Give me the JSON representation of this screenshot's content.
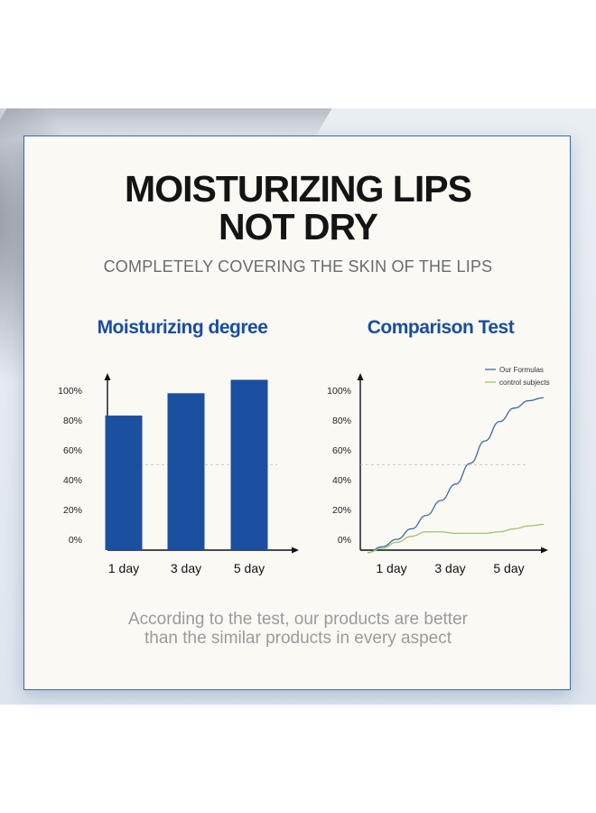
{
  "heading": {
    "line1": "MOISTURIZING LIPS",
    "line2": "NOT DRY",
    "subtitle": "COMPLETELY COVERING THE SKIN OF THE LIPS"
  },
  "footer": {
    "line1": "According to the test, our products are better",
    "line2": "than the similar products in every aspect"
  },
  "colors": {
    "primary_blue": "#1b4fa0",
    "line_blue": "#3d6aa8",
    "line_green": "#9ec36b"
  },
  "chart_data": [
    {
      "type": "bar",
      "title": "Moisturizing degree",
      "categories": [
        "1 day",
        "3 day",
        "5 day"
      ],
      "values": [
        83,
        98,
        107
      ],
      "y_ticks": [
        "0%",
        "20%",
        "40%",
        "60%",
        "80%",
        "100%"
      ],
      "ylim": [
        0,
        120
      ],
      "reference_line": 50,
      "grid": false
    },
    {
      "type": "line",
      "title": "Comparison Test",
      "categories": [
        "1 day",
        "3 day",
        "5 day"
      ],
      "x": [
        0,
        0.5,
        1,
        1.5,
        2,
        2.5,
        3,
        3.5,
        4,
        4.5,
        5,
        5.5,
        6
      ],
      "series": [
        {
          "name": "Our Formulas",
          "values": [
            -9,
            -5,
            0,
            7,
            16,
            26,
            37,
            51,
            66,
            79,
            88,
            93,
            95
          ]
        },
        {
          "name": "control subjects",
          "values": [
            -9,
            -6,
            -2,
            2,
            5,
            5,
            4,
            4,
            4,
            5,
            7,
            9,
            10
          ]
        }
      ],
      "y_ticks": [
        "0%",
        "20%",
        "40%",
        "60%",
        "80%",
        "100%"
      ],
      "ylim": [
        -9,
        110
      ],
      "reference_line": 50,
      "legend": "top-right",
      "grid": false
    }
  ]
}
